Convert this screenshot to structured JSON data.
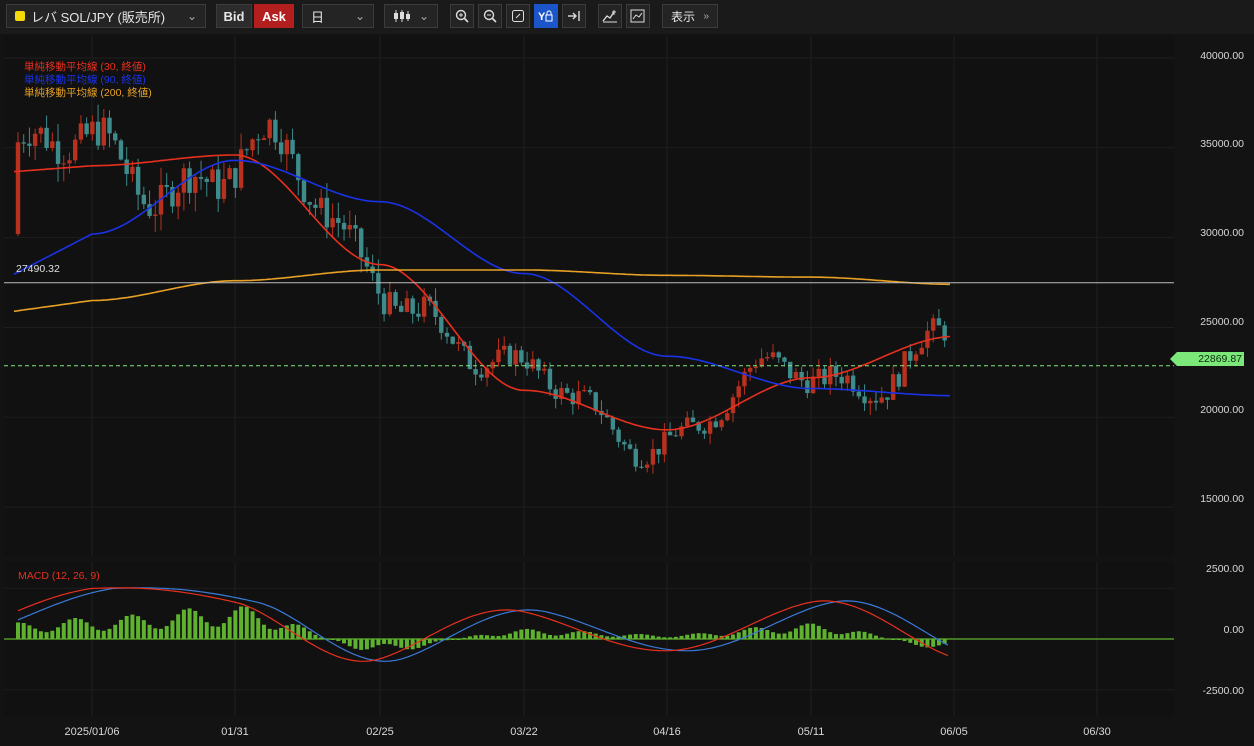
{
  "toolbar": {
    "symbol": "レバ SOL/JPY (販売所)",
    "bid_label": "Bid",
    "ask_label": "Ask",
    "timeframe": "日",
    "view_label": "表示"
  },
  "legend": {
    "ma30": "単純移動平均線 (30, 終値)",
    "ma90": "単純移動平均線 (90, 終値)",
    "ma200": "単純移動平均線 (200, 終値)",
    "macd": "MACD (12, 26, 9)"
  },
  "price_axis": [
    "40000.00",
    "35000.00",
    "30000.00",
    "25000.00",
    "20000.00",
    "15000.00"
  ],
  "macd_axis": [
    "2500.00",
    "0.00",
    "-2500.00"
  ],
  "date_axis": [
    "2025/01/06",
    "01/31",
    "02/25",
    "03/22",
    "04/16",
    "05/11",
    "06/05",
    "06/30"
  ],
  "horizontal_line_label": "27490.32",
  "current_price": "22869.87",
  "colors": {
    "up": "#b8311f",
    "down": "#3f8a8a",
    "ma30": "#e8301f",
    "ma90": "#1a33e8",
    "ma200": "#e8a126",
    "macd_hist": "#5fb22f",
    "macd_line": "#e8301f",
    "signal_line": "#3a7ad8",
    "current_price": "#7de87a"
  },
  "chart_data": [
    {
      "type": "line",
      "title": "",
      "x": [
        "2025/01/06",
        "01/31",
        "02/25",
        "03/22",
        "04/16",
        "05/11",
        "06/05"
      ],
      "series": [
        {
          "name": "単純移動平均線 (30, 終値)",
          "values": [
            34000,
            34600,
            28500,
            21500,
            19300,
            22200,
            24500
          ]
        },
        {
          "name": "単純移動平均線 (90, 終値)",
          "values": [
            30200,
            34300,
            32000,
            28000,
            23400,
            21600,
            21200
          ]
        },
        {
          "name": "単純移動平均線 (200, 終値)",
          "values": [
            26500,
            27600,
            28200,
            28200,
            27900,
            27800,
            27400
          ]
        }
      ],
      "ylim": [
        12500,
        41000
      ]
    },
    {
      "type": "bar",
      "title": "MACD (12, 26, 9)",
      "x": [
        "2025/01/06",
        "01/31",
        "02/25",
        "03/22",
        "04/16",
        "05/11",
        "06/05"
      ],
      "series": [
        {
          "name": "",
          "values": [
            1000,
            1500,
            -600,
            450,
            200,
            700,
            -500
          ]
        }
      ],
      "ylim": [
        -3500,
        3500
      ]
    }
  ]
}
